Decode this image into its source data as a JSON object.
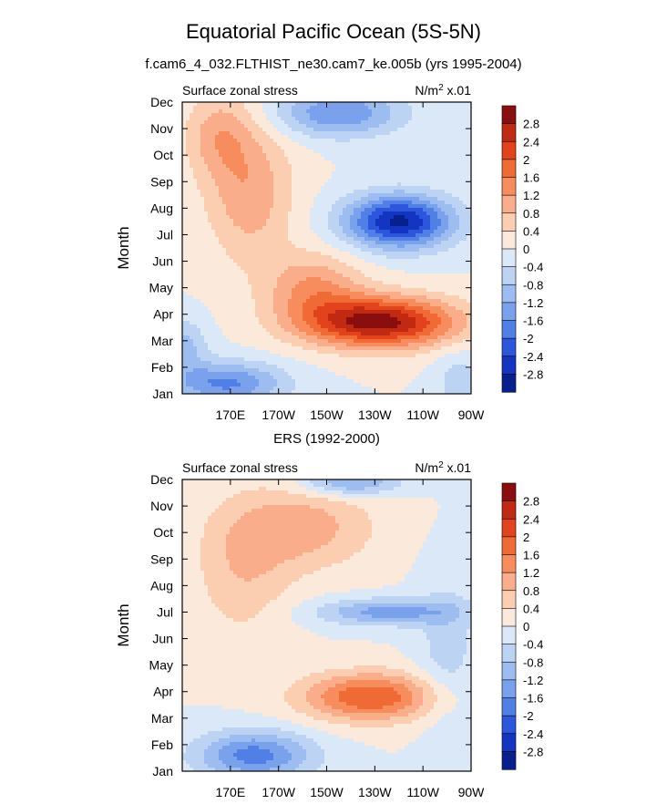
{
  "figure": {
    "title": "Equatorial Pacific Ocean (5S-5N)",
    "subtitle": "f.cam6_4_032.FLTHIST_ne30.cam7_ke.005b (yrs 1995-2004)"
  },
  "colorbar": {
    "labels": [
      "2.8",
      "2.4",
      "2",
      "1.6",
      "1.2",
      "0.8",
      "0.4",
      "0",
      "-0.4",
      "-0.8",
      "-1.2",
      "-1.6",
      "-2",
      "-2.4",
      "-2.8"
    ],
    "colors": [
      "#8b0e0e",
      "#c02a12",
      "#e2421c",
      "#f06a35",
      "#f78d5c",
      "#f9ad8a",
      "#fbcdb1",
      "#fbe9dc",
      "#dbe8f7",
      "#bcd3f3",
      "#9dbcf0",
      "#7aa1ec",
      "#5080e6",
      "#2c56dc",
      "#1434c2",
      "#08208e"
    ]
  },
  "chart_data": [
    {
      "type": "contour",
      "title": "",
      "left_label": "Surface zonal stress",
      "right_label": "N/m",
      "right_label_sup": "2",
      "right_label_tail": " x.01",
      "xlabel": "",
      "ylabel": "Month",
      "x_ticks": [
        "170E",
        "170W",
        "150W",
        "130W",
        "110W",
        "90W"
      ],
      "x_tick_lon": [
        170,
        190,
        210,
        230,
        250,
        270
      ],
      "xlim": [
        150,
        270
      ],
      "y_ticks": [
        "Jan",
        "Feb",
        "Mar",
        "Apr",
        "May",
        "Jun",
        "Jul",
        "Aug",
        "Sep",
        "Oct",
        "Nov",
        "Dec"
      ],
      "ylim": [
        1,
        12
      ],
      "field": [
        {
          "lon": 232,
          "mon": 3.7,
          "amp": 3.0,
          "sx": 32,
          "sy": 0.95,
          "rot": -0.55
        },
        {
          "lon": 205,
          "mon": 5.0,
          "amp": 1.2,
          "sx": 20,
          "sy": 1.3,
          "rot": -0.5
        },
        {
          "lon": 178,
          "mon": 8.6,
          "amp": 1.1,
          "sx": 18,
          "sy": 2.6,
          "rot": 0.0
        },
        {
          "lon": 165,
          "mon": 10.8,
          "amp": 0.9,
          "sx": 14,
          "sy": 1.6,
          "rot": 0.0
        },
        {
          "lon": 240,
          "mon": 7.5,
          "amp": -2.9,
          "sx": 22,
          "sy": 1.0,
          "rot": -0.15
        },
        {
          "lon": 215,
          "mon": 11.6,
          "amp": -1.6,
          "sx": 26,
          "sy": 0.9,
          "rot": 0.0
        },
        {
          "lon": 168,
          "mon": 1.4,
          "amp": -1.7,
          "sx": 24,
          "sy": 0.8,
          "rot": 0.0
        },
        {
          "lon": 150,
          "mon": 2.8,
          "amp": -1.0,
          "sx": 10,
          "sy": 1.0,
          "rot": 0.0
        },
        {
          "lon": 265,
          "mon": 1.5,
          "amp": -0.6,
          "sx": 10,
          "sy": 1.2,
          "rot": 0.0
        }
      ]
    },
    {
      "type": "contour",
      "title": "ERS (1992-2000)",
      "left_label": "Surface zonal stress",
      "right_label": "N/m",
      "right_label_sup": "2",
      "right_label_tail": " x.01",
      "xlabel": "",
      "ylabel": "Month",
      "x_ticks": [
        "170E",
        "170W",
        "150W",
        "130W",
        "110W",
        "90W"
      ],
      "x_tick_lon": [
        170,
        190,
        210,
        230,
        250,
        270
      ],
      "xlim": [
        150,
        270
      ],
      "y_ticks": [
        "Jan",
        "Feb",
        "Mar",
        "Apr",
        "May",
        "Jun",
        "Jul",
        "Aug",
        "Sep",
        "Oct",
        "Nov",
        "Dec"
      ],
      "ylim": [
        1,
        12
      ],
      "field": [
        {
          "lon": 228,
          "mon": 3.8,
          "amp": 2.0,
          "sx": 28,
          "sy": 0.9,
          "rot": -0.55
        },
        {
          "lon": 200,
          "mon": 10.2,
          "amp": 1.0,
          "sx": 30,
          "sy": 1.6,
          "rot": 0.0
        },
        {
          "lon": 175,
          "mon": 8.5,
          "amp": 0.7,
          "sx": 20,
          "sy": 2.5,
          "rot": 0.0
        },
        {
          "lon": 235,
          "mon": 7.0,
          "amp": -1.4,
          "sx": 28,
          "sy": 0.5,
          "rot": 0.0
        },
        {
          "lon": 180,
          "mon": 1.6,
          "amp": -1.8,
          "sx": 24,
          "sy": 0.9,
          "rot": 0.0
        },
        {
          "lon": 220,
          "mon": 11.9,
          "amp": -1.4,
          "sx": 20,
          "sy": 0.5,
          "rot": 0.0
        },
        {
          "lon": 260,
          "mon": 5.5,
          "amp": -0.6,
          "sx": 12,
          "sy": 3.0,
          "rot": 0.0
        }
      ]
    }
  ]
}
